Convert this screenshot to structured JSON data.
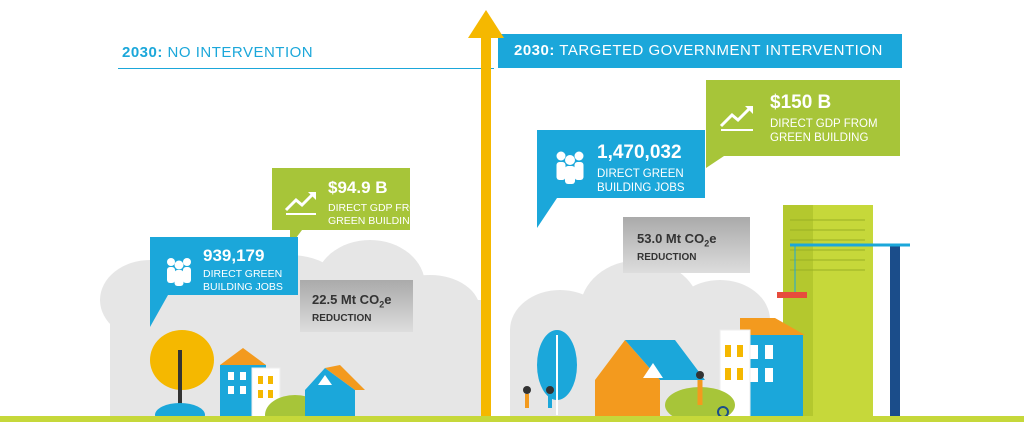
{
  "headers": {
    "left_year": "2030:",
    "left_title": "NO INTERVENTION",
    "right_year": "2030:",
    "right_title": "TARGETED GOVERNMENT INTERVENTION"
  },
  "no_intervention": {
    "jobs_value": "939,179",
    "jobs_label_1": "DIRECT GREEN",
    "jobs_label_2": "BUILDING JOBS",
    "gdp_value": "$94.9 B",
    "gdp_label_1": "DIRECT GDP FROM",
    "gdp_label_2": "GREEN BUILDING",
    "co2_value_pre": "22.5 Mt CO",
    "co2_sub": "2",
    "co2_value_post": "e",
    "co2_label": "REDUCTION"
  },
  "intervention": {
    "jobs_value": "1,470,032",
    "jobs_label_1": "DIRECT GREEN",
    "jobs_label_2": "BUILDING JOBS",
    "gdp_value": "$150 B",
    "gdp_label_1": "DIRECT GDP FROM",
    "gdp_label_2": "GREEN BUILDING",
    "co2_value_pre": "53.0 Mt CO",
    "co2_sub": "2",
    "co2_value_post": "e",
    "co2_label": "REDUCTION"
  },
  "colors": {
    "blue": "#1ba7da",
    "green": "#a7c539",
    "yellow": "#f5b800",
    "orange": "#f39a1e",
    "gray": "#bbbbbb"
  }
}
